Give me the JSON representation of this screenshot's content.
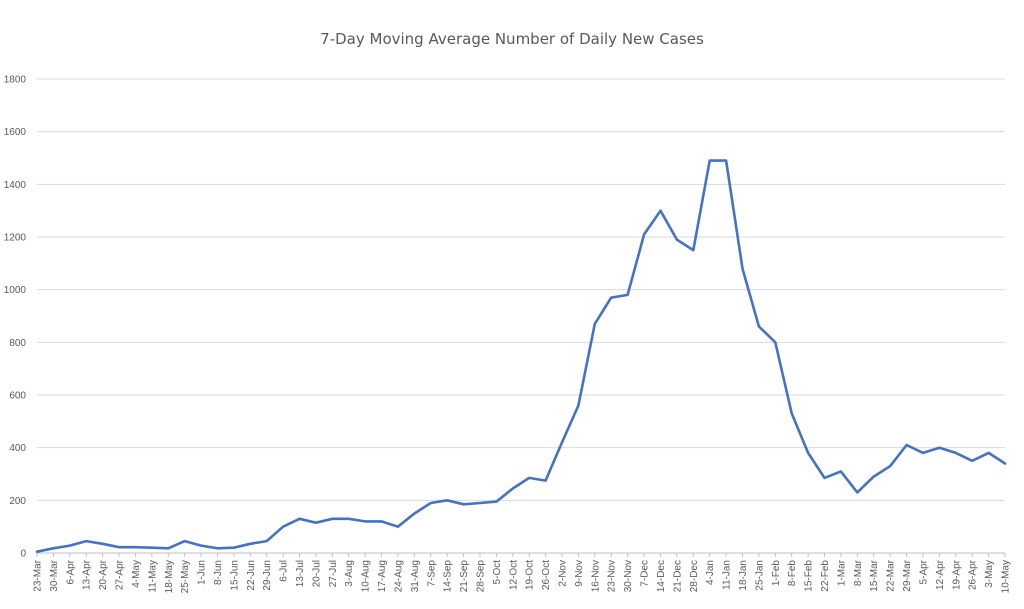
{
  "chart_data": {
    "type": "line",
    "title": "7-Day Moving Average Number of Daily New Cases",
    "xlabel": "",
    "ylabel": "",
    "ylim": [
      0,
      1800
    ],
    "yticks": [
      "0",
      "200",
      "400",
      "600",
      "800",
      "1000",
      "1200",
      "1400",
      "1600",
      "1800"
    ],
    "grid": true,
    "legend": "none",
    "line_color": "#4472C4",
    "x_tick_labels": [
      "23-Mar",
      "30-Mar",
      "6-Apr",
      "13-Apr",
      "20-Apr",
      "27-Apr",
      "4-May",
      "11-May",
      "18-May",
      "25-May",
      "1-Jun",
      "8-Jun",
      "15-Jun",
      "22-Jun",
      "29-Jun",
      "6-Jul",
      "13-Jul",
      "20-Jul",
      "27-Jul",
      "3-Aug",
      "10-Aug",
      "17-Aug",
      "24-Aug",
      "31-Aug",
      "7-Sep",
      "14-Sep",
      "21-Sep",
      "28-Sep",
      "5-Oct",
      "12-Oct",
      "19-Oct",
      "26-Oct",
      "2-Nov",
      "9-Nov",
      "16-Nov",
      "23-Nov",
      "30-Nov",
      "7-Dec",
      "14-Dec",
      "21-Dec",
      "28-Dec",
      "4-Jan",
      "11-Jan",
      "18-Jan",
      "25-Jan",
      "1-Feb",
      "8-Feb",
      "15-Feb",
      "22-Feb",
      "1-Mar",
      "8-Mar",
      "15-Mar",
      "22-Mar",
      "29-Mar",
      "5-Apr",
      "12-Apr",
      "19-Apr",
      "26-Apr",
      "3-May",
      "10-May"
    ],
    "series": [
      {
        "x": [
          "23-Mar",
          "30-Mar",
          "6-Apr",
          "13-Apr",
          "20-Apr",
          "27-Apr",
          "4-May",
          "11-May",
          "18-May",
          "25-May",
          "1-Jun",
          "8-Jun",
          "15-Jun",
          "22-Jun",
          "29-Jun",
          "6-Jul",
          "13-Jul",
          "20-Jul",
          "27-Jul",
          "3-Aug",
          "10-Aug",
          "17-Aug",
          "24-Aug",
          "31-Aug",
          "7-Sep",
          "14-Sep",
          "21-Sep",
          "28-Sep",
          "5-Oct",
          "12-Oct",
          "19-Oct",
          "26-Oct",
          "2-Nov",
          "9-Nov",
          "16-Nov",
          "23-Nov",
          "30-Nov",
          "7-Dec",
          "14-Dec",
          "21-Dec",
          "28-Dec",
          "4-Jan",
          "11-Jan",
          "18-Jan",
          "25-Jan",
          "1-Feb",
          "8-Feb",
          "15-Feb",
          "22-Feb",
          "1-Mar",
          "8-Mar",
          "15-Mar",
          "22-Mar",
          "29-Mar",
          "5-Apr",
          "12-Apr",
          "19-Apr",
          "26-Apr",
          "3-May",
          "10-May"
        ],
        "values": [
          5,
          18,
          28,
          45,
          35,
          22,
          22,
          20,
          18,
          45,
          28,
          18,
          20,
          35,
          45,
          100,
          130,
          115,
          130,
          130,
          120,
          120,
          100,
          150,
          190,
          200,
          185,
          190,
          195,
          245,
          285,
          275,
          420,
          560,
          870,
          970,
          980,
          1210,
          1300,
          1190,
          1150,
          1490,
          1490,
          1080,
          860,
          800,
          530,
          380,
          285,
          310,
          230,
          290,
          330,
          410,
          380,
          400,
          380,
          350,
          380,
          340
        ]
      }
    ]
  }
}
